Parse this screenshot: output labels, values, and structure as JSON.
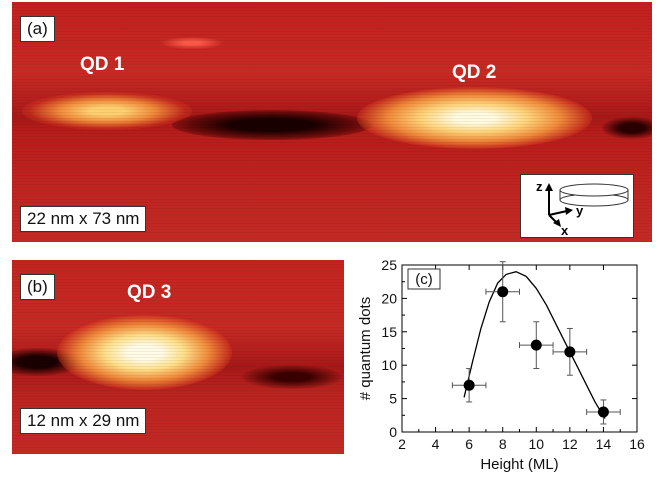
{
  "panel_a": {
    "label": "(a)",
    "qd1": "QD 1",
    "qd2": "QD 2",
    "scale": "22 nm x 73 nm",
    "axes": {
      "z": "z",
      "y": "y",
      "x": "x"
    }
  },
  "panel_b": {
    "label": "(b)",
    "qd3": "QD 3",
    "scale": "12 nm x 29 nm"
  },
  "colors": {
    "stm_dark": "#7a0f10",
    "stm_mid": "#c8302a",
    "stm_bright": "#fff6c8"
  },
  "chart_data": {
    "type": "scatter",
    "panel_label": "(c)",
    "xlabel": "Height (ML)",
    "ylabel": "# quantum dots",
    "xlim": [
      2,
      16
    ],
    "ylim": [
      0,
      25
    ],
    "xticks": [
      "2",
      "4",
      "6",
      "8",
      "10",
      "12",
      "14",
      "16"
    ],
    "yticks": [
      "0",
      "5",
      "10",
      "15",
      "20",
      "25"
    ],
    "points": [
      {
        "x": 6,
        "y": 7,
        "xerr": 1,
        "yerr": 2.5
      },
      {
        "x": 8,
        "y": 21,
        "xerr": 1,
        "yerr": 4.5
      },
      {
        "x": 10,
        "y": 13,
        "xerr": 1,
        "yerr": 3.5
      },
      {
        "x": 12,
        "y": 12,
        "xerr": 1,
        "yerr": 3.5
      },
      {
        "x": 14,
        "y": 3,
        "xerr": 1,
        "yerr": 1.8
      }
    ],
    "fit_curve": [
      [
        5.7,
        5.2
      ],
      [
        6.2,
        10.5
      ],
      [
        6.7,
        15.5
      ],
      [
        7.2,
        19.5
      ],
      [
        7.7,
        22.3
      ],
      [
        8.2,
        23.6
      ],
      [
        8.8,
        24
      ],
      [
        9.4,
        23.3
      ],
      [
        10,
        21.5
      ],
      [
        10.6,
        19
      ],
      [
        11.2,
        16
      ],
      [
        11.8,
        13
      ],
      [
        12.4,
        10
      ],
      [
        13,
        7
      ],
      [
        13.5,
        4.5
      ],
      [
        14.1,
        2
      ]
    ]
  }
}
